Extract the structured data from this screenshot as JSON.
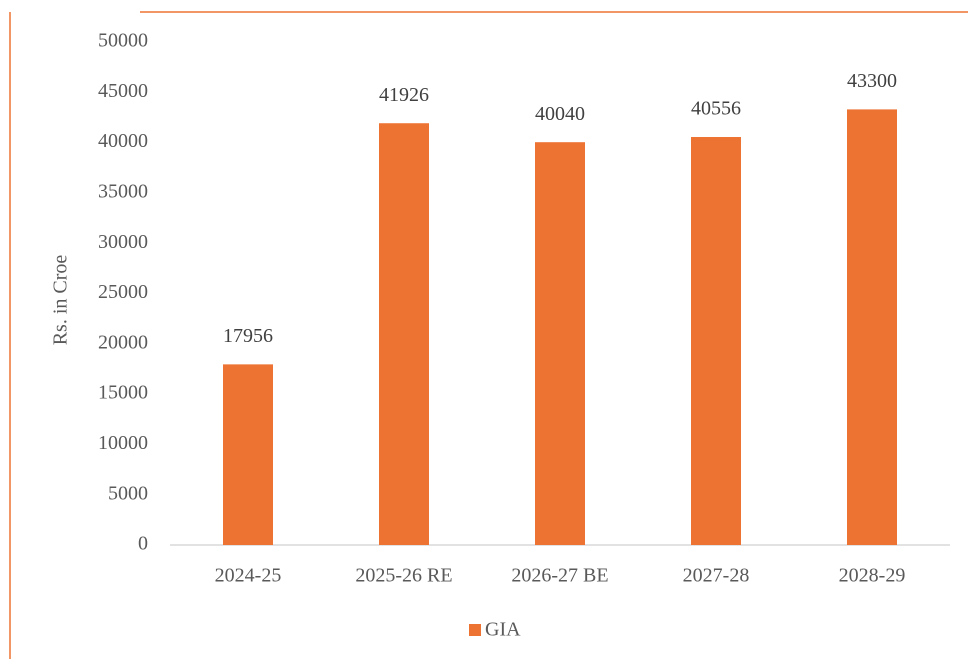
{
  "chart_data": {
    "type": "bar",
    "categories": [
      "2024-25",
      "2025-26 RE",
      "2026-27 BE",
      "2027-28",
      "2028-29"
    ],
    "series": [
      {
        "name": "GIA",
        "color": "#ed7333",
        "values": [
          17956,
          41926,
          40040,
          40556,
          43300
        ]
      }
    ],
    "y_label": "Rs. in Croe",
    "ylim": [
      0,
      50000
    ],
    "yticks": [
      0,
      5000,
      10000,
      15000,
      20000,
      25000,
      30000,
      35000,
      40000,
      45000,
      50000
    ],
    "legend": "bottom"
  }
}
